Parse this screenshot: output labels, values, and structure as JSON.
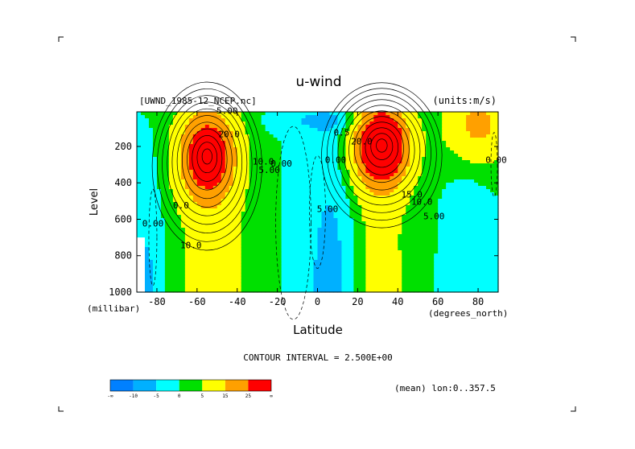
{
  "chart_data": {
    "type": "heatmap",
    "title": "u-wind",
    "file_label": "[UWND_1985-12_NCEP.nc]",
    "units_label": "(units:m/s)",
    "xlabel": "Latitude",
    "x_units": "(degrees_north)",
    "ylabel": "Level",
    "y_units": "(millibar)",
    "xlim": [
      -90,
      90
    ],
    "ylim": [
      1000,
      10
    ],
    "x_ticks": [
      -80,
      -60,
      -40,
      -20,
      0,
      20,
      40,
      60,
      80
    ],
    "y_ticks": [
      200,
      400,
      600,
      800,
      1000
    ],
    "contour_interval_text": "CONTOUR INTERVAL = 2.500E+00",
    "mean_text": "(mean) lon:0..357.5",
    "contour_labels": [
      {
        "text": "5.00",
        "lat": -45,
        "lev": 20
      },
      {
        "text": "20.0",
        "lat": -44,
        "lev": 150
      },
      {
        "text": "10.0",
        "lat": -27,
        "lev": 300
      },
      {
        "text": "5.00",
        "lat": -24,
        "lev": 345
      },
      {
        "text": "0.00",
        "lat": -18,
        "lev": 310
      },
      {
        "text": "0.00",
        "lat": -82,
        "lev": 640
      },
      {
        "text": "0.0",
        "lat": -68,
        "lev": 540
      },
      {
        "text": "10.0",
        "lat": -63,
        "lev": 760
      },
      {
        "text": "5.00",
        "lat": 5,
        "lev": 560
      },
      {
        "text": "0.00",
        "lat": 9,
        "lev": 290
      },
      {
        "text": "0.5",
        "lat": 12,
        "lev": 140
      },
      {
        "text": "20.0",
        "lat": 22,
        "lev": 190
      },
      {
        "text": "15.0",
        "lat": 47,
        "lev": 480
      },
      {
        "text": "10.0",
        "lat": 52,
        "lev": 520
      },
      {
        "text": "5.00",
        "lat": 58,
        "lev": 600
      },
      {
        "text": "0.00",
        "lat": 89,
        "lev": 290
      }
    ],
    "colorbar": {
      "levels": [
        "-∞",
        "-10",
        "-5",
        "0",
        "5",
        "15",
        "25",
        "∞"
      ],
      "colors": [
        "#0080ff",
        "#00b0ff",
        "#00ffff",
        "#00e000",
        "#ffff00",
        "#ffa000",
        "#ff0000"
      ]
    },
    "color_bins": [
      -10,
      -5,
      0,
      5,
      15,
      25
    ],
    "jets": [
      {
        "lat": -55,
        "lev": 250,
        "max": 32,
        "sx": 14,
        "sy": 190
      },
      {
        "lat": 32,
        "lev": 190,
        "max": 40,
        "sx": 14,
        "sy": 180
      },
      {
        "lat": 80,
        "lev": 80,
        "max": 18,
        "sx": 16,
        "sy": 160
      }
    ]
  }
}
